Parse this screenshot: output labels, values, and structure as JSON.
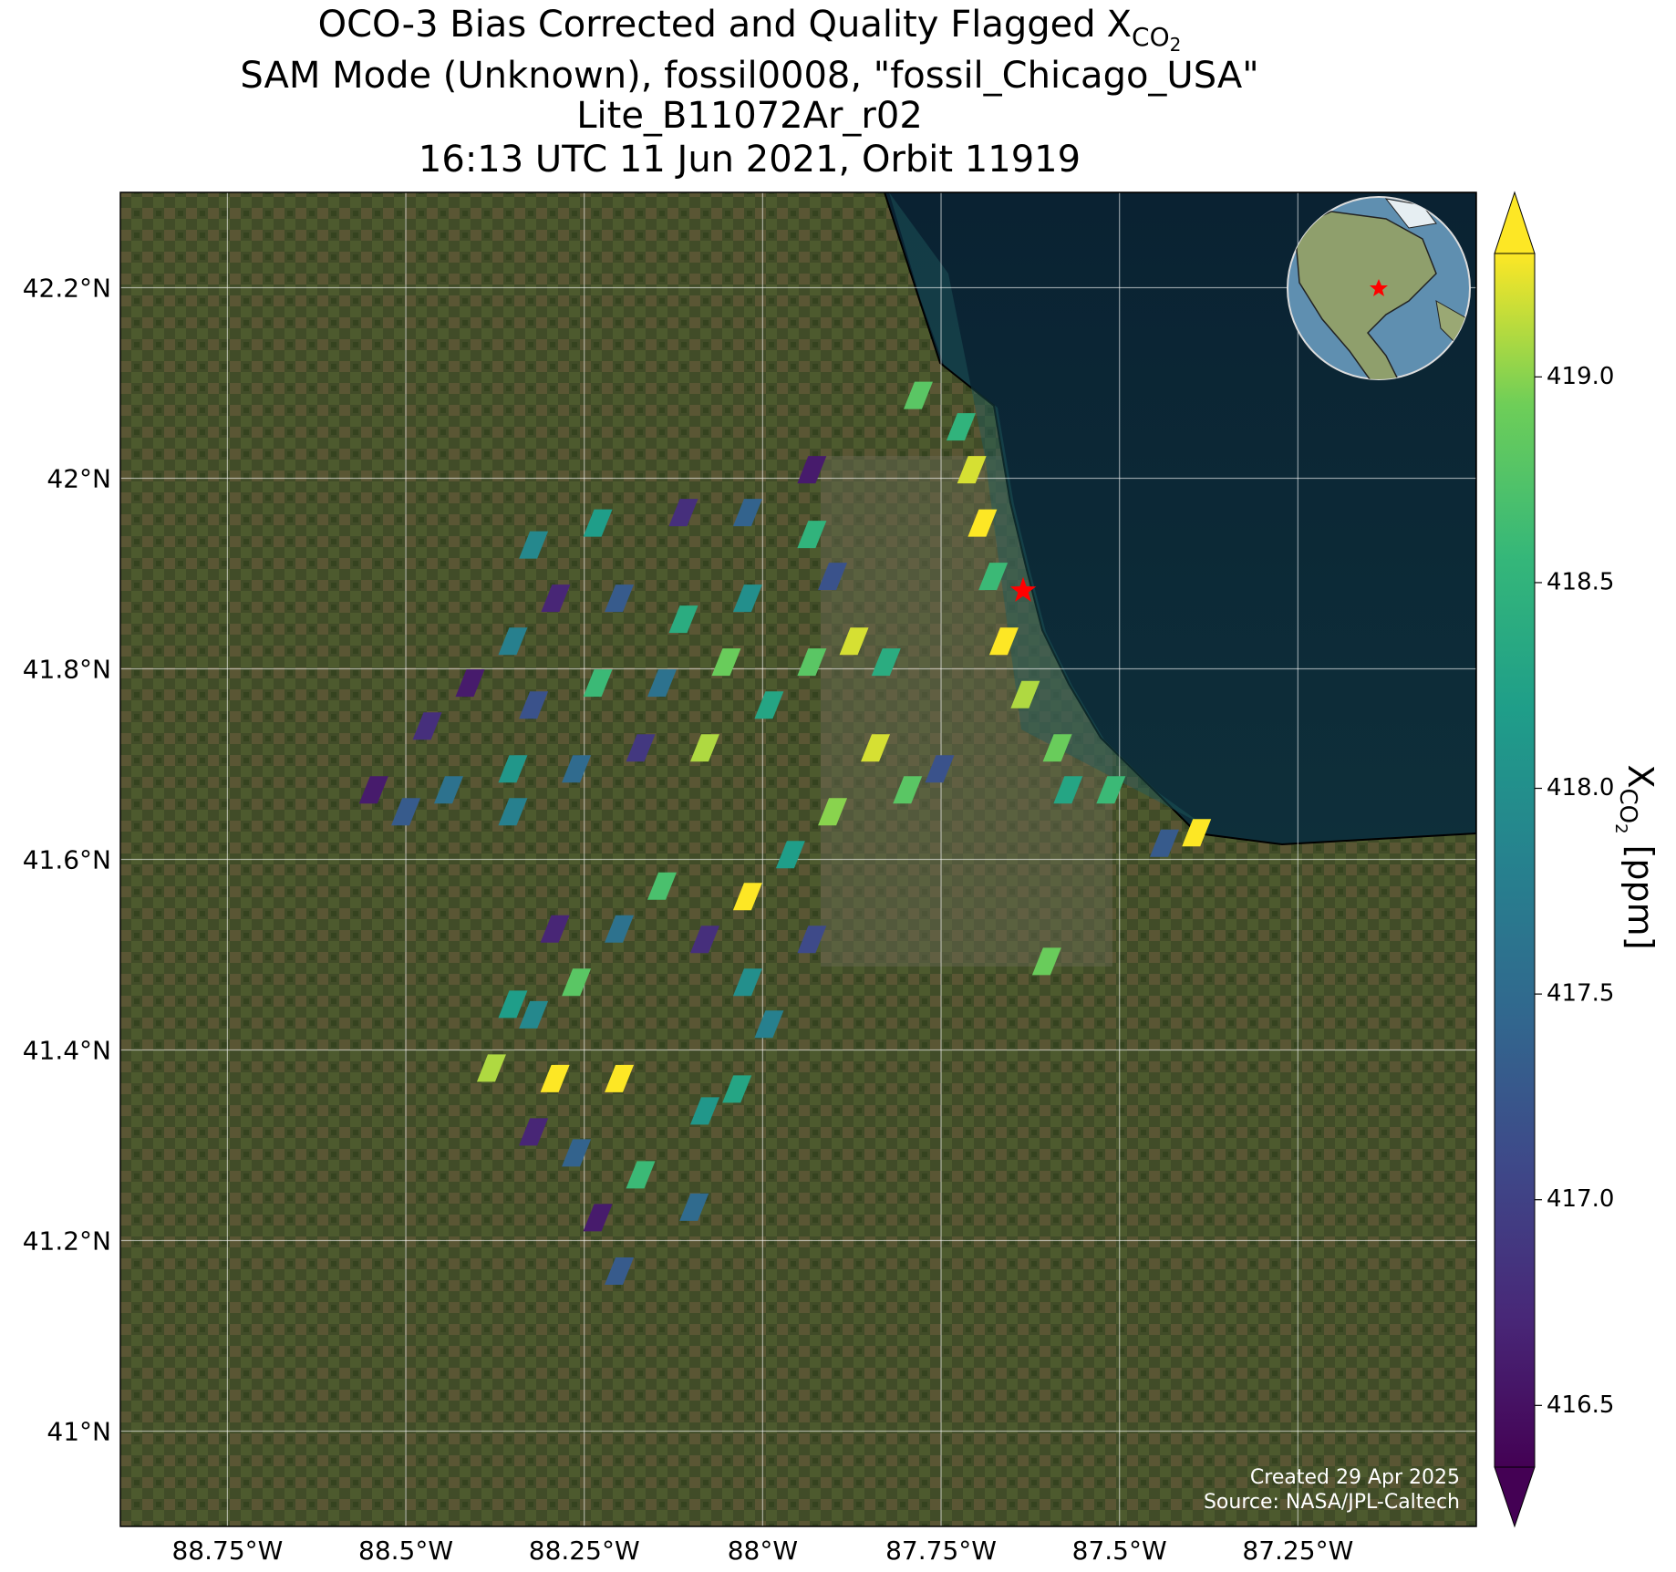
{
  "chart_data": {
    "type": "map",
    "title_lines": [
      "OCO-3 Bias Corrected and Quality Flagged",
      "SAM Mode (Unknown), fossil0008, \"fossil_Chicago_USA\"",
      "Lite_B11072Ar_r02",
      "16:13 UTC 11 Jun 2021, Orbit 11919"
    ],
    "quantity": {
      "symbol": "X",
      "sub": "CO",
      "subsub": "2",
      "unit": "[ppm]"
    },
    "xlim": [
      -88.9,
      -87.0
    ],
    "ylim": [
      40.9,
      42.3
    ],
    "xticks": [
      {
        "value": -88.75,
        "label": "88.75°W"
      },
      {
        "value": -88.5,
        "label": "88.5°W"
      },
      {
        "value": -88.25,
        "label": "88.25°W"
      },
      {
        "value": -88,
        "label": "88°W"
      },
      {
        "value": -87.75,
        "label": "87.75°W"
      },
      {
        "value": -87.5,
        "label": "87.5°W"
      },
      {
        "value": -87.25,
        "label": "87.25°W"
      }
    ],
    "yticks": [
      {
        "value": 42.2,
        "label": "42.2°N"
      },
      {
        "value": 42,
        "label": "42°N"
      },
      {
        "value": 41.8,
        "label": "41.8°N"
      },
      {
        "value": 41.6,
        "label": "41.6°N"
      },
      {
        "value": 41.4,
        "label": "41.4°N"
      },
      {
        "value": 41.2,
        "label": "41.2°N"
      },
      {
        "value": 41,
        "label": "41°N"
      }
    ],
    "grid": true,
    "colorbar": {
      "colormap": "viridis",
      "extend": "both",
      "clim": [
        416.35,
        419.3
      ],
      "ticks": [
        416.5,
        {
          "value": 417,
          "label": "417.0"
        },
        417.5,
        {
          "value": 418,
          "label": "418.0"
        },
        418.5,
        {
          "value": 419,
          "label": "419.0"
        }
      ]
    },
    "site_marker": {
      "lon": -87.635,
      "lat": 41.882,
      "color": "#ff0000"
    },
    "soundings": {
      "lon": [
        -87.782,
        -87.722,
        -87.707,
        -87.692,
        -87.677,
        -87.662,
        -87.632,
        -87.587,
        -87.572,
        -87.512,
        -87.392,
        -87.437,
        -87.602,
        -87.842,
        -87.797,
        -87.752,
        -87.902,
        -87.961,
        -88.021,
        -88.081,
        -88.141,
        -88.201,
        -88.021,
        -87.991,
        -87.931,
        -87.872,
        -87.827,
        -87.931,
        -87.931,
        -88.021,
        -88.111,
        -88.231,
        -88.321,
        -87.931,
        -87.902,
        -88.021,
        -88.111,
        -88.201,
        -88.29,
        -88.35,
        -88.41,
        -88.321,
        -88.231,
        -88.141,
        -88.051,
        -87.991,
        -88.081,
        -88.171,
        -88.261,
        -88.35,
        -88.47,
        -88.545,
        -88.5,
        -88.44,
        -88.35,
        -88.38,
        -88.35,
        -88.291,
        -88.201,
        -88.321,
        -88.261,
        -88.171,
        -88.231,
        -88.201,
        -88.081,
        -88.036,
        -88.096,
        -88.291,
        -88.261,
        -88.321
      ],
      "lat": [
        42.087,
        42.054,
        42.009,
        41.953,
        41.897,
        41.829,
        41.773,
        41.717,
        41.673,
        41.673,
        41.628,
        41.617,
        41.493,
        41.717,
        41.673,
        41.695,
        41.65,
        41.605,
        41.561,
        41.516,
        41.572,
        41.527,
        41.471,
        41.427,
        41.516,
        41.829,
        41.807,
        41.807,
        42.009,
        41.964,
        41.964,
        41.953,
        41.93,
        41.941,
        41.897,
        41.874,
        41.852,
        41.874,
        41.874,
        41.829,
        41.785,
        41.762,
        41.785,
        41.785,
        41.807,
        41.762,
        41.717,
        41.717,
        41.695,
        41.695,
        41.74,
        41.673,
        41.65,
        41.673,
        41.65,
        41.381,
        41.448,
        41.37,
        41.37,
        41.314,
        41.292,
        41.269,
        41.224,
        41.168,
        41.336,
        41.359,
        41.235,
        41.527,
        41.471,
        41.437
      ],
      "values": [
        418.8,
        418.5,
        419.2,
        419.3,
        418.6,
        419.3,
        419.1,
        418.9,
        418.3,
        418.6,
        419.3,
        417.3,
        418.9,
        419.2,
        418.8,
        417.2,
        419.0,
        418.2,
        419.3,
        416.8,
        418.7,
        417.6,
        418.0,
        417.8,
        417.1,
        419.2,
        418.4,
        418.8,
        416.6,
        417.4,
        416.8,
        418.2,
        417.9,
        418.5,
        417.2,
        418.0,
        418.4,
        417.3,
        416.7,
        417.8,
        416.6,
        417.2,
        418.6,
        417.6,
        418.9,
        418.3,
        419.1,
        416.9,
        417.5,
        418.1,
        416.8,
        416.6,
        417.3,
        417.6,
        417.8,
        419.1,
        418.2,
        419.3,
        419.3,
        416.7,
        417.4,
        418.6,
        416.6,
        417.3,
        418.1,
        418.3,
        417.5,
        416.7,
        418.8,
        417.9
      ]
    },
    "credits": [
      "Created 29 Apr 2025",
      "Source: NASA/JPL-Caltech"
    ]
  }
}
